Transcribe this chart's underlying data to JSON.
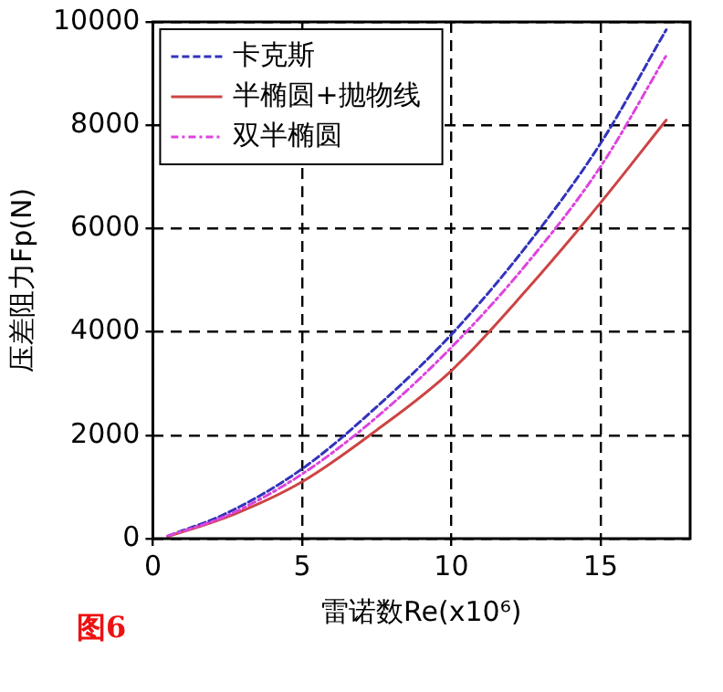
{
  "chart_data": {
    "type": "line",
    "xlabel": "雷诺数Re(x10⁶)",
    "ylabel": "压差阻力Fp(N)",
    "annotations": [
      "图6"
    ],
    "xlim": [
      0,
      18
    ],
    "xticks": [
      0,
      5,
      10,
      15
    ],
    "ylim": [
      0,
      10000
    ],
    "yticks": [
      0,
      2000,
      4000,
      6000,
      8000,
      10000
    ],
    "grid": true,
    "legend": "top left",
    "marker": "none",
    "x": [
      0.5,
      2.5,
      5,
      7.5,
      10,
      12.5,
      15,
      17.2
    ],
    "series": [
      {
        "name": "卡克斯",
        "color": "#3333bb",
        "line_style": "dashed",
        "values": [
          50,
          500,
          1350,
          2550,
          3950,
          5650,
          7650,
          9850
        ]
      },
      {
        "name": "半椭圆+抛物线",
        "color": "#cc4444",
        "line_style": "solid",
        "values": [
          40,
          420,
          1100,
          2100,
          3250,
          4800,
          6500,
          8100
        ]
      },
      {
        "name": "双半椭圆",
        "color": "#dd44dd",
        "line_style": "dashdot",
        "values": [
          50,
          450,
          1250,
          2350,
          3700,
          5300,
          7200,
          9350
        ]
      }
    ]
  }
}
